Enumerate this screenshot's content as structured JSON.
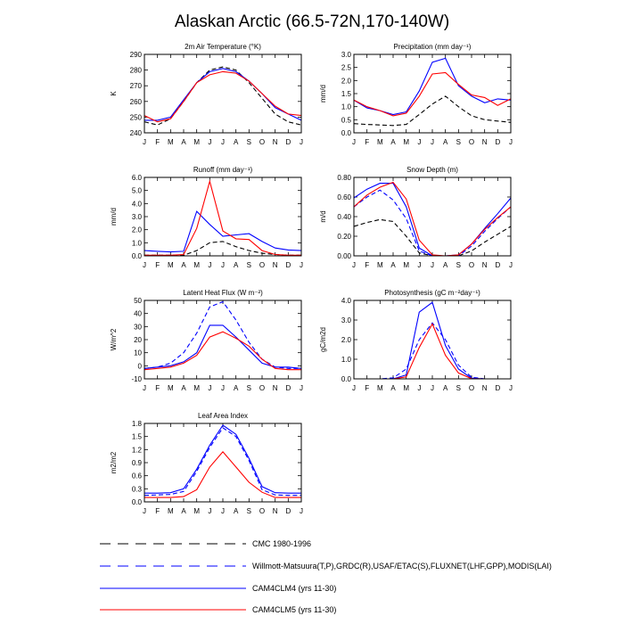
{
  "title": "Alaskan Arctic (66.5-72N,170-140W)",
  "months": [
    "J",
    "F",
    "M",
    "A",
    "M",
    "J",
    "J",
    "A",
    "S",
    "O",
    "N",
    "D",
    "J"
  ],
  "colors": {
    "cmc": "#000000",
    "obs": "#0000ff",
    "clm4": "#0000ff",
    "clm5": "#ff0000"
  },
  "chart_data": [
    {
      "type": "line",
      "title": "2m Air Temperature (°K)",
      "ylabel": "K",
      "ylim": [
        240,
        290
      ],
      "yticks": [
        "240",
        "250",
        "260",
        "270",
        "280",
        "290"
      ],
      "series": [
        {
          "key": "cmc",
          "dash": true,
          "values": [
            247,
            245,
            249,
            260,
            272,
            280,
            282,
            280,
            272,
            262,
            252,
            247,
            245
          ]
        },
        {
          "key": "clm4",
          "dash": false,
          "values": [
            248,
            248,
            250,
            261,
            272,
            279,
            281,
            279,
            273,
            265,
            256,
            252,
            248
          ]
        },
        {
          "key": "clm5",
          "dash": false,
          "values": [
            251,
            247,
            249,
            260,
            272,
            277,
            279,
            278,
            273,
            265,
            257,
            252,
            251
          ]
        }
      ]
    },
    {
      "type": "line",
      "title": "Precipitation (mm day⁻¹)",
      "ylabel": "mm/d",
      "ylim": [
        0,
        3
      ],
      "yticks": [
        "0.0",
        "0.5",
        "1.0",
        "1.5",
        "2.0",
        "2.5",
        "3.0"
      ],
      "series": [
        {
          "key": "cmc",
          "dash": true,
          "values": [
            0.35,
            0.32,
            0.3,
            0.28,
            0.32,
            0.7,
            1.1,
            1.4,
            1.0,
            0.65,
            0.5,
            0.45,
            0.4
          ]
        },
        {
          "key": "clm4",
          "dash": false,
          "values": [
            1.25,
            0.95,
            0.85,
            0.7,
            0.8,
            1.6,
            2.7,
            2.85,
            1.8,
            1.4,
            1.15,
            1.3,
            1.25
          ]
        },
        {
          "key": "clm5",
          "dash": false,
          "values": [
            1.25,
            1.0,
            0.85,
            0.65,
            0.75,
            1.4,
            2.25,
            2.3,
            1.85,
            1.45,
            1.35,
            1.05,
            1.3
          ]
        }
      ]
    },
    {
      "type": "line",
      "title": "Runoff (mm day⁻¹)",
      "ylabel": "mm/d",
      "ylim": [
        0,
        6
      ],
      "yticks": [
        "0.0",
        "1.0",
        "2.0",
        "3.0",
        "4.0",
        "5.0",
        "6.0"
      ],
      "series": [
        {
          "key": "cmc",
          "dash": true,
          "values": [
            0.05,
            0.05,
            0.05,
            0.05,
            0.4,
            1.0,
            1.1,
            0.7,
            0.4,
            0.2,
            0.1,
            0.05,
            0.05
          ]
        },
        {
          "key": "clm4",
          "dash": false,
          "values": [
            0.4,
            0.35,
            0.3,
            0.35,
            3.4,
            2.4,
            1.5,
            1.6,
            1.7,
            1.1,
            0.6,
            0.45,
            0.4
          ]
        },
        {
          "key": "clm5",
          "dash": false,
          "values": [
            0.05,
            0.05,
            0.05,
            0.1,
            2.1,
            5.7,
            1.9,
            1.3,
            1.25,
            0.4,
            0.1,
            0.05,
            0.05
          ]
        }
      ]
    },
    {
      "type": "line",
      "title": "Snow Depth (m)",
      "ylabel": "m/d",
      "ylim": [
        0,
        0.8
      ],
      "yticks": [
        "0.00",
        "0.20",
        "0.40",
        "0.60",
        "0.80"
      ],
      "series": [
        {
          "key": "cmc",
          "dash": true,
          "values": [
            0.3,
            0.34,
            0.37,
            0.35,
            0.2,
            0.03,
            0.0,
            0.0,
            0.0,
            0.05,
            0.14,
            0.22,
            0.3
          ]
        },
        {
          "key": "obs",
          "dash": true,
          "values": [
            0.5,
            0.6,
            0.67,
            0.57,
            0.38,
            0.05,
            0.0,
            0.0,
            0.0,
            0.1,
            0.25,
            0.38,
            0.5
          ]
        },
        {
          "key": "clm4",
          "dash": false,
          "values": [
            0.59,
            0.68,
            0.74,
            0.74,
            0.5,
            0.08,
            0.0,
            0.0,
            0.01,
            0.12,
            0.28,
            0.43,
            0.59
          ]
        },
        {
          "key": "clm5",
          "dash": false,
          "values": [
            0.5,
            0.62,
            0.7,
            0.75,
            0.58,
            0.16,
            0.01,
            0.0,
            0.01,
            0.12,
            0.27,
            0.39,
            0.5
          ]
        }
      ]
    },
    {
      "type": "line",
      "title": "Latent Heat Flux (W m⁻²)",
      "ylabel": "W/m^2",
      "ylim": [
        -10,
        50
      ],
      "yticks": [
        "-10",
        "0",
        "10",
        "20",
        "30",
        "40",
        "50"
      ],
      "series": [
        {
          "key": "obs",
          "dash": true,
          "values": [
            -2,
            -1,
            2,
            10,
            25,
            45,
            49,
            35,
            18,
            5,
            -1,
            -2,
            -2
          ]
        },
        {
          "key": "clm4",
          "dash": false,
          "values": [
            -2,
            -1,
            0,
            3,
            10,
            31,
            31,
            22,
            12,
            2,
            -1,
            -1,
            -2
          ]
        },
        {
          "key": "clm5",
          "dash": false,
          "values": [
            -3,
            -2,
            -1,
            2,
            8,
            22,
            26,
            21,
            15,
            5,
            -2,
            -3,
            -3
          ]
        }
      ]
    },
    {
      "type": "line",
      "title": "Photosynthesis (gC m⁻²day⁻¹)",
      "ylabel": "gC/m2d",
      "ylim": [
        0,
        4
      ],
      "yticks": [
        "0.0",
        "1.0",
        "2.0",
        "3.0",
        "4.0"
      ],
      "series": [
        {
          "key": "obs",
          "dash": true,
          "values": [
            0,
            0,
            0,
            0.05,
            0.5,
            2.0,
            2.85,
            2.0,
            0.7,
            0.08,
            0,
            0,
            0
          ]
        },
        {
          "key": "clm4",
          "dash": false,
          "values": [
            0,
            0,
            0,
            0,
            0.2,
            3.4,
            3.9,
            1.7,
            0.5,
            0.03,
            0,
            0,
            0
          ]
        },
        {
          "key": "clm5",
          "dash": false,
          "values": [
            0,
            0,
            0,
            0,
            0.1,
            1.6,
            2.8,
            1.2,
            0.3,
            0.01,
            0,
            0,
            0
          ]
        }
      ]
    },
    {
      "type": "line",
      "title": "Leaf Area Index",
      "ylabel": "m2/m2",
      "ylim": [
        0,
        1.8
      ],
      "yticks": [
        "0.0",
        "0.3",
        "0.6",
        "0.9",
        "1.2",
        "1.5",
        "1.8"
      ],
      "series": [
        {
          "key": "obs",
          "dash": true,
          "values": [
            0.15,
            0.16,
            0.17,
            0.24,
            0.7,
            1.25,
            1.7,
            1.5,
            0.95,
            0.28,
            0.16,
            0.15,
            0.15
          ]
        },
        {
          "key": "clm4",
          "dash": false,
          "values": [
            0.2,
            0.2,
            0.21,
            0.3,
            0.75,
            1.3,
            1.76,
            1.55,
            1.0,
            0.35,
            0.21,
            0.2,
            0.2
          ]
        },
        {
          "key": "clm5",
          "dash": false,
          "values": [
            0.1,
            0.1,
            0.1,
            0.12,
            0.28,
            0.8,
            1.15,
            0.8,
            0.45,
            0.22,
            0.1,
            0.1,
            0.1
          ]
        }
      ]
    }
  ],
  "legend": [
    {
      "key": "cmc",
      "dash": true,
      "label": "CMC 1980-1996"
    },
    {
      "key": "obs",
      "dash": true,
      "label": "Willmott-Matsuura(T,P),GRDC(R),USAF/ETAC(S),FLUXNET(LHF,GPP),MODIS(LAI)"
    },
    {
      "key": "clm4",
      "dash": false,
      "label": "CAM4CLM4 (yrs 11-30)"
    },
    {
      "key": "clm5",
      "dash": false,
      "label": "CAM4CLM5 (yrs 11-30)"
    }
  ]
}
